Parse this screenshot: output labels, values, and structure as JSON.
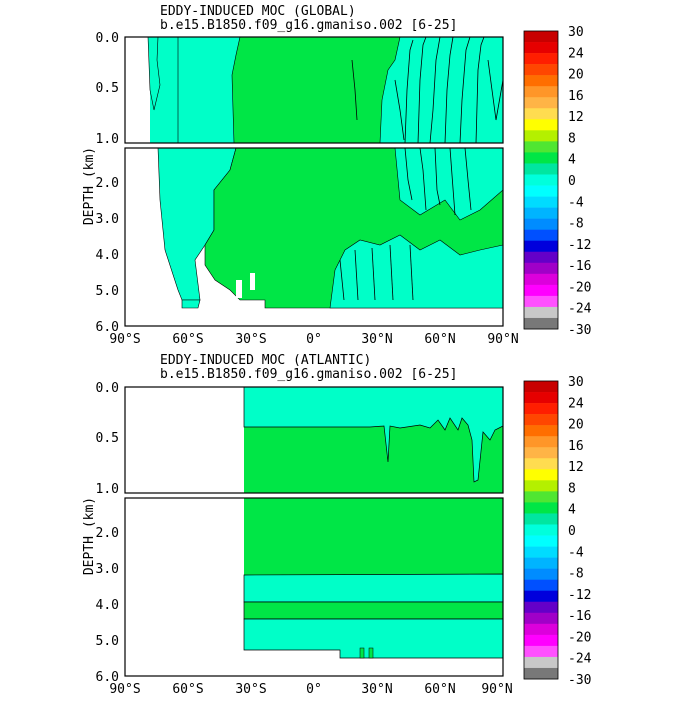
{
  "colorbar": {
    "labels": [
      "30",
      "24",
      "20",
      "16",
      "12",
      "8",
      "4",
      "0",
      "-4",
      "-8",
      "-12",
      "-16",
      "-20",
      "-24",
      "-30"
    ],
    "colors": [
      "#c80000",
      "#e60000",
      "#ff1e00",
      "#ff4600",
      "#ff6e00",
      "#ff9628",
      "#ffb446",
      "#ffdc50",
      "#ffff00",
      "#b4f000",
      "#50e632",
      "#00e646",
      "#00e6a0",
      "#00ffdc",
      "#00ffff",
      "#00dcff",
      "#00b4ff",
      "#008cff",
      "#0050ff",
      "#0000dc",
      "#6400c8",
      "#a000c8",
      "#dc00dc",
      "#ff00ff",
      "#ff50ff",
      "#c8c8c8",
      "#787878"
    ]
  },
  "colors": {
    "positive": "#00e646",
    "negative": "#00ffc8",
    "contour": "#000000",
    "missing": "#ffffff"
  },
  "chart_data": [
    {
      "type": "heatmap",
      "title": "EDDY-INDUCED MOC (GLOBAL)",
      "subtitle": "b.e15.B1850.f09_g16.gmaniso.002 [6-25]",
      "xlabel": "",
      "ylabel": "DEPTH (km)",
      "x_ticks": [
        "90°S",
        "60°S",
        "30°S",
        "0°",
        "30°N",
        "60°N",
        "90°N"
      ],
      "y_ticks_top": [
        "0.0",
        "0.5",
        "1.0"
      ],
      "y_ticks_bottom": [
        "2.0",
        "3.0",
        "4.0",
        "5.0",
        "6.0"
      ],
      "xlim": [
        -90,
        90
      ],
      "ylim_top": [
        0,
        1
      ],
      "ylim_bottom": [
        1,
        6
      ],
      "regions": [
        {
          "name": "negative cell",
          "lat": [
            -74,
            -37
          ],
          "depth": [
            0,
            5.5
          ]
        },
        {
          "name": "positive cell",
          "lat": [
            -37,
            90
          ],
          "depth": [
            0,
            5.3
          ]
        },
        {
          "name": "negative patch",
          "lat": [
            20,
            50
          ],
          "depth": [
            3.8,
            5.2
          ]
        },
        {
          "name": "negative bands",
          "lat": [
            30,
            90
          ],
          "depth": [
            0,
            2.8
          ]
        }
      ]
    },
    {
      "type": "heatmap",
      "title": "EDDY-INDUCED MOC (ATLANTIC)",
      "subtitle": "b.e15.B1850.f09_g16.gmaniso.002 [6-25]",
      "xlabel": "",
      "ylabel": "DEPTH (km)",
      "x_ticks": [
        "90°S",
        "60°S",
        "30°S",
        "0°",
        "30°N",
        "60°N",
        "90°N"
      ],
      "y_ticks_top": [
        "0.0",
        "0.5",
        "1.0"
      ],
      "y_ticks_bottom": [
        "2.0",
        "3.0",
        "4.0",
        "5.0",
        "6.0"
      ],
      "xlim": [
        -90,
        90
      ],
      "ylim_top": [
        0,
        1
      ],
      "ylim_bottom": [
        1,
        6
      ],
      "regions": [
        {
          "name": "negative layer",
          "lat": [
            -34,
            90
          ],
          "depth": [
            0,
            0.4
          ]
        },
        {
          "name": "positive layer",
          "lat": [
            -34,
            90
          ],
          "depth": [
            0.4,
            3.2
          ]
        },
        {
          "name": "negative layer",
          "lat": [
            -34,
            90
          ],
          "depth": [
            3.2,
            3.9
          ]
        },
        {
          "name": "positive layer",
          "lat": [
            -34,
            90
          ],
          "depth": [
            3.9,
            4.4
          ]
        },
        {
          "name": "negative layer",
          "lat": [
            -34,
            90
          ],
          "depth": [
            4.4,
            5.5
          ]
        }
      ]
    }
  ]
}
